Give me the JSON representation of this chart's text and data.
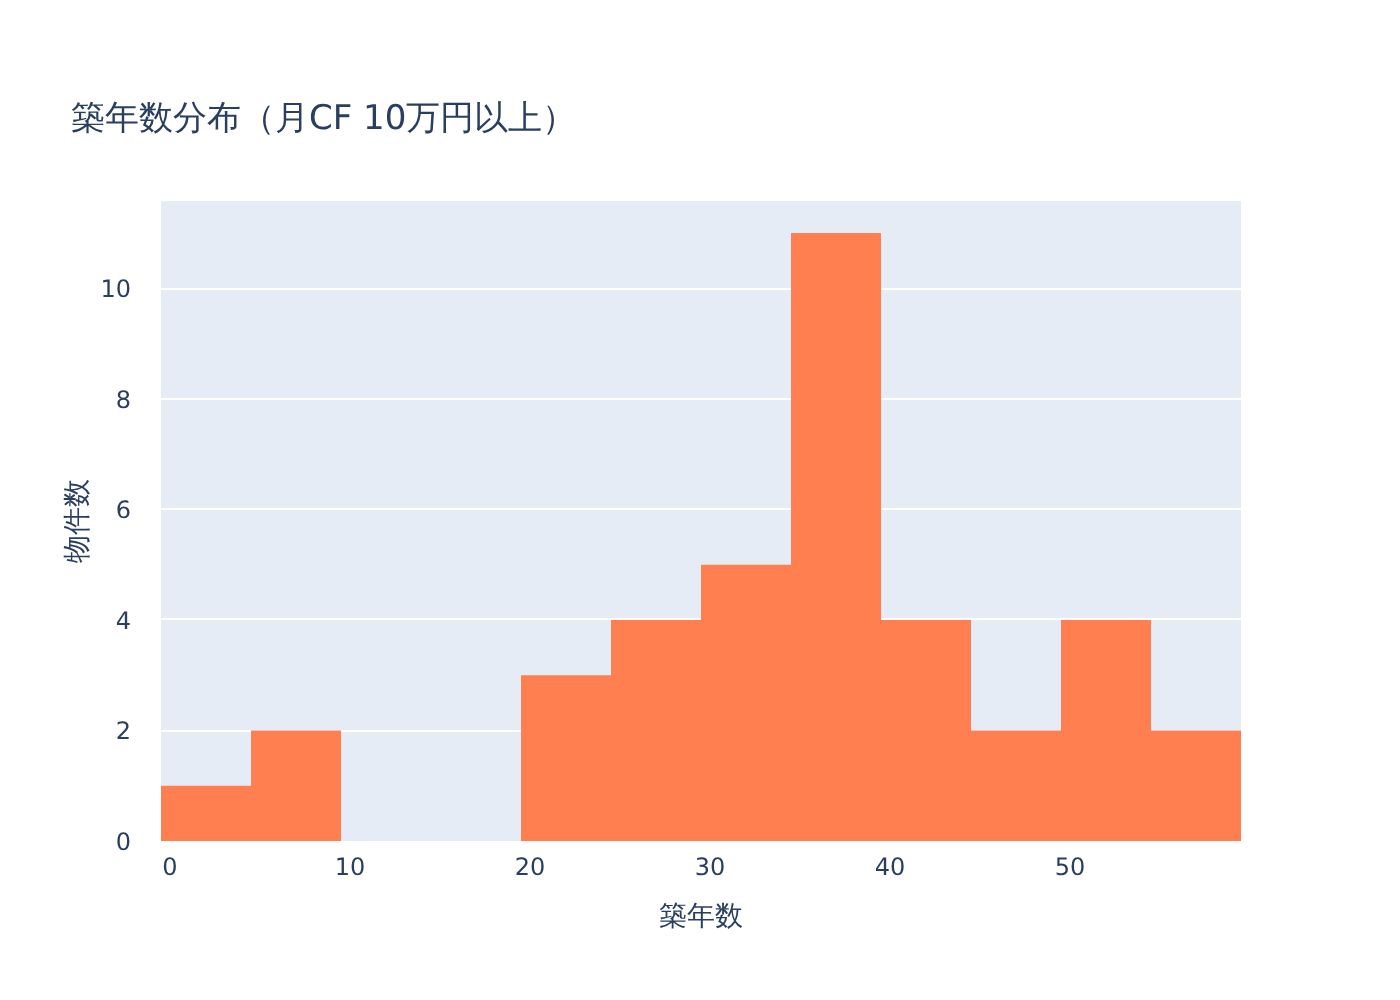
{
  "chart_data": {
    "type": "histogram",
    "title": "築年数分布（月CF 10万円以上）",
    "xlabel": "築年数",
    "ylabel": "物件数",
    "bins": [
      -0.5,
      4.5,
      9.5,
      14.5,
      19.5,
      24.5,
      29.5,
      34.5,
      39.5,
      44.5,
      49.5,
      54.5,
      59.5
    ],
    "values": [
      1,
      2,
      0,
      0,
      3,
      4,
      5,
      11,
      4,
      2,
      4,
      2
    ],
    "color": "#ff7f50",
    "xlim": [
      -0.5,
      59.5
    ],
    "ylim": [
      0,
      11.58
    ],
    "xticks": [
      0,
      10,
      20,
      30,
      40,
      50
    ],
    "yticks": [
      0,
      2,
      4,
      6,
      8,
      10
    ],
    "grid": "y"
  }
}
